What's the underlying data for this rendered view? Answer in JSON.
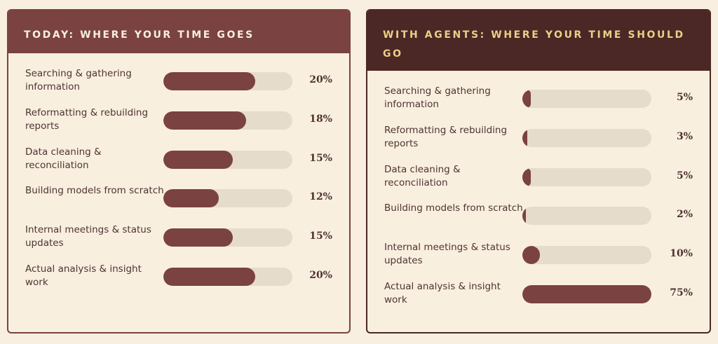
{
  "chart_data": [
    {
      "type": "bar",
      "orientation": "horizontal",
      "title": "TODAY: WHERE YOUR TIME GOES",
      "categories": [
        "Searching & gathering information",
        "Reformatting & rebuilding reports",
        "Data cleaning & reconciliation",
        "Building models from scratch",
        "Internal meetings & status updates",
        "Actual analysis & insight work"
      ],
      "values": [
        20,
        18,
        15,
        12,
        15,
        20
      ],
      "value_labels": [
        "20%",
        "18%",
        "15%",
        "12%",
        "15%",
        "20%"
      ],
      "xlim": [
        0,
        28
      ],
      "bar_color": "#7a4240",
      "track_color": "#e6dccb",
      "header_color": "#7a4240"
    },
    {
      "type": "bar",
      "orientation": "horizontal",
      "title": "WITH AGENTS: WHERE YOUR TIME SHOULD GO",
      "categories": [
        "Searching & gathering information",
        "Reformatting & rebuilding reports",
        "Data cleaning & reconciliation",
        "Building models from scratch",
        "Internal meetings & status updates",
        "Actual analysis & insight work"
      ],
      "values": [
        5,
        3,
        5,
        2,
        10,
        75
      ],
      "value_labels": [
        "5%",
        "3%",
        "5%",
        "2%",
        "10%",
        "75%"
      ],
      "xlim": [
        0,
        75
      ],
      "bar_color": "#7a4240",
      "track_color": "#e6dccb",
      "header_color": "#4b2726",
      "title_color": "#eccf86"
    }
  ]
}
